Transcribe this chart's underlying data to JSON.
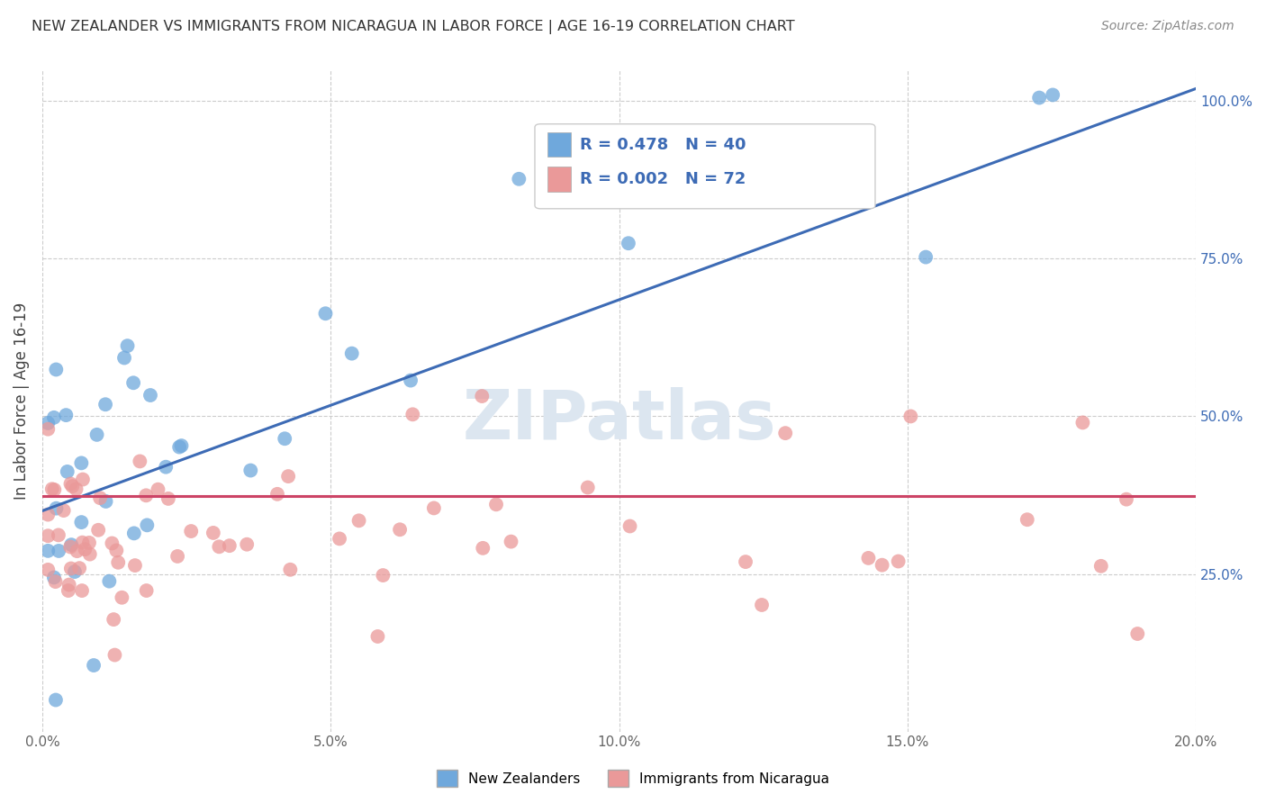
{
  "title": "NEW ZEALANDER VS IMMIGRANTS FROM NICARAGUA IN LABOR FORCE | AGE 16-19 CORRELATION CHART",
  "source": "Source: ZipAtlas.com",
  "ylabel": "In Labor Force | Age 16-19",
  "xlim": [
    0.0,
    0.2
  ],
  "ylim": [
    0.0,
    1.05
  ],
  "xticks": [
    0.0,
    0.05,
    0.1,
    0.15,
    0.2
  ],
  "xtick_labels": [
    "0.0%",
    "5.0%",
    "10.0%",
    "15.0%",
    "20.0%"
  ],
  "yticks_right": [
    0.25,
    0.5,
    0.75,
    1.0
  ],
  "ytick_labels_right": [
    "25.0%",
    "50.0%",
    "75.0%",
    "100.0%"
  ],
  "blue_color": "#6fa8dc",
  "pink_color": "#ea9999",
  "blue_line_color": "#3d6bb5",
  "pink_line_color": "#cc4466",
  "grid_color": "#cccccc",
  "background_color": "#ffffff",
  "watermark": "ZIPatlas",
  "watermark_color": "#dce6f0",
  "legend_R1": "0.478",
  "legend_N1": "40",
  "legend_R2": "0.002",
  "legend_N2": "72",
  "legend_label1": "New Zealanders",
  "legend_label2": "Immigrants from Nicaragua",
  "blue_trend_x": [
    0.0,
    0.2
  ],
  "blue_trend_y": [
    0.35,
    1.02
  ],
  "pink_trend_x": [
    0.0,
    0.2
  ],
  "pink_trend_y": [
    0.373,
    0.373
  ]
}
